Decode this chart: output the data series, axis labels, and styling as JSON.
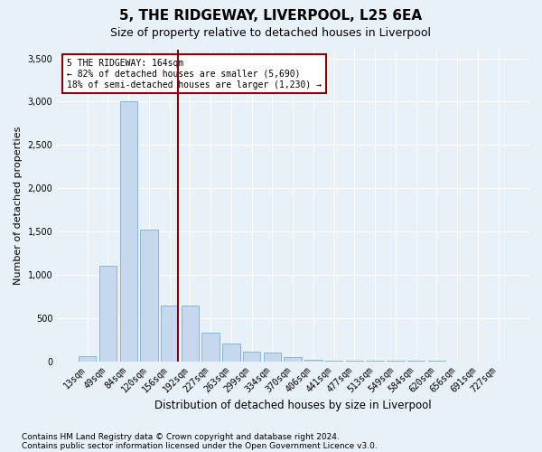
{
  "title": "5, THE RIDGEWAY, LIVERPOOL, L25 6EA",
  "subtitle": "Size of property relative to detached houses in Liverpool",
  "xlabel": "Distribution of detached houses by size in Liverpool",
  "ylabel": "Number of detached properties",
  "categories": [
    "13sqm",
    "49sqm",
    "84sqm",
    "120sqm",
    "156sqm",
    "192sqm",
    "227sqm",
    "263sqm",
    "299sqm",
    "334sqm",
    "370sqm",
    "406sqm",
    "441sqm",
    "477sqm",
    "513sqm",
    "549sqm",
    "584sqm",
    "620sqm",
    "656sqm",
    "691sqm",
    "727sqm"
  ],
  "values": [
    60,
    1100,
    3000,
    1520,
    640,
    640,
    330,
    200,
    110,
    100,
    45,
    20,
    10,
    5,
    3,
    2,
    1,
    1,
    0,
    0,
    0
  ],
  "bar_color": "#c5d8ed",
  "bar_edge_color": "#7aadd4",
  "vline_color": "#8b0000",
  "annotation_text": "5 THE RIDGEWAY: 164sqm\n← 82% of detached houses are smaller (5,690)\n18% of semi-detached houses are larger (1,230) →",
  "annotation_box_color": "#ffffff",
  "annotation_box_edgecolor": "#8b0000",
  "ylim": [
    0,
    3600
  ],
  "yticks": [
    0,
    500,
    1000,
    1500,
    2000,
    2500,
    3000,
    3500
  ],
  "background_color": "#e8f0f8",
  "plot_background_color": "#e8f0f8",
  "footer_line1": "Contains HM Land Registry data © Crown copyright and database right 2024.",
  "footer_line2": "Contains public sector information licensed under the Open Government Licence v3.0.",
  "title_fontsize": 11,
  "subtitle_fontsize": 9,
  "xlabel_fontsize": 8.5,
  "ylabel_fontsize": 8,
  "tick_fontsize": 7,
  "footer_fontsize": 6.5,
  "vline_bar_index": 4
}
